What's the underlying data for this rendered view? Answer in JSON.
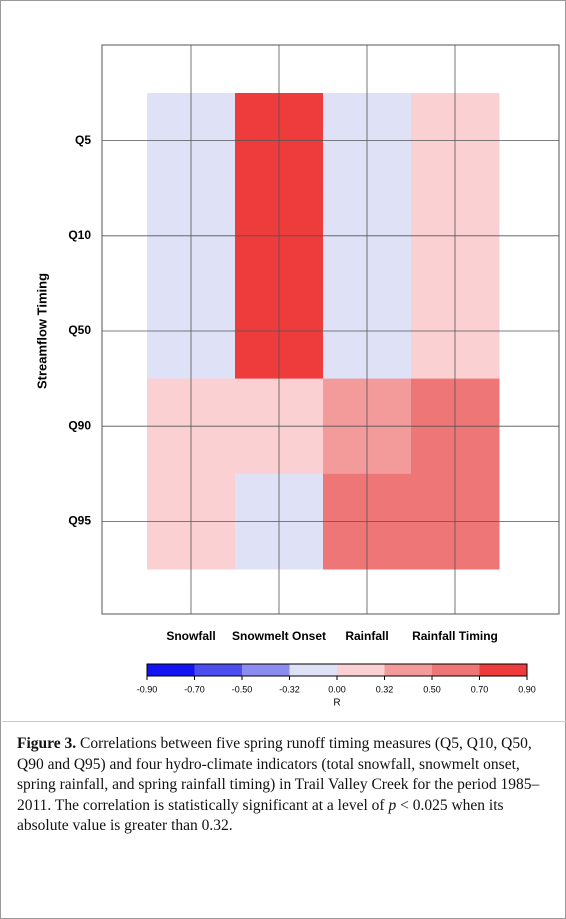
{
  "chart_data": {
    "type": "heatmap",
    "y_label": "Streamflow Timing",
    "categories": [
      "Snowfall",
      "Snowmelt Onset",
      "Rainfall",
      "Rainfall Timing"
    ],
    "rows": [
      "Q5",
      "Q10",
      "Q50",
      "Q90",
      "Q95"
    ],
    "values": [
      [
        -0.1,
        0.8,
        -0.1,
        0.2
      ],
      [
        -0.1,
        0.8,
        -0.1,
        0.2
      ],
      [
        -0.1,
        0.8,
        -0.1,
        0.2
      ],
      [
        0.2,
        0.2,
        0.4,
        0.6
      ],
      [
        0.2,
        -0.1,
        0.6,
        0.6
      ]
    ],
    "grid": true,
    "colorbar": {
      "label": "R",
      "ticks": [
        {
          "value": -0.9,
          "label": "-0.90"
        },
        {
          "value": -0.7,
          "label": "-0.70"
        },
        {
          "value": -0.5,
          "label": "-0.50"
        },
        {
          "value": -0.32,
          "label": "-0.32"
        },
        {
          "value": 0,
          "label": "0.00"
        },
        {
          "value": 0.32,
          "label": "0.32"
        },
        {
          "value": 0.5,
          "label": "0.50"
        },
        {
          "value": 0.7,
          "label": "0.70"
        },
        {
          "value": 0.9,
          "label": "0.90"
        }
      ],
      "colors": [
        "#1414f2",
        "#4d4df0",
        "#8c8cf0",
        "#dfe1f6",
        "#fbd0d3",
        "#f39a9b",
        "#ef7677",
        "#ee3b3c"
      ]
    }
  },
  "caption": {
    "label": "Figure 3.",
    "parts": [
      "Correlations between five spring runoff timing measures (Q5, Q10, Q50, Q90 and Q95) and four hydro-climate indicators (total snowfall, snowmelt onset, spring rainfall, and spring rainfall timing) in Trail Valley Creek for the period 1985–2011. The correlation is statistically significant at a level of ",
      "p",
      " < 0.025 when its absolute value is greater than 0.32."
    ]
  }
}
